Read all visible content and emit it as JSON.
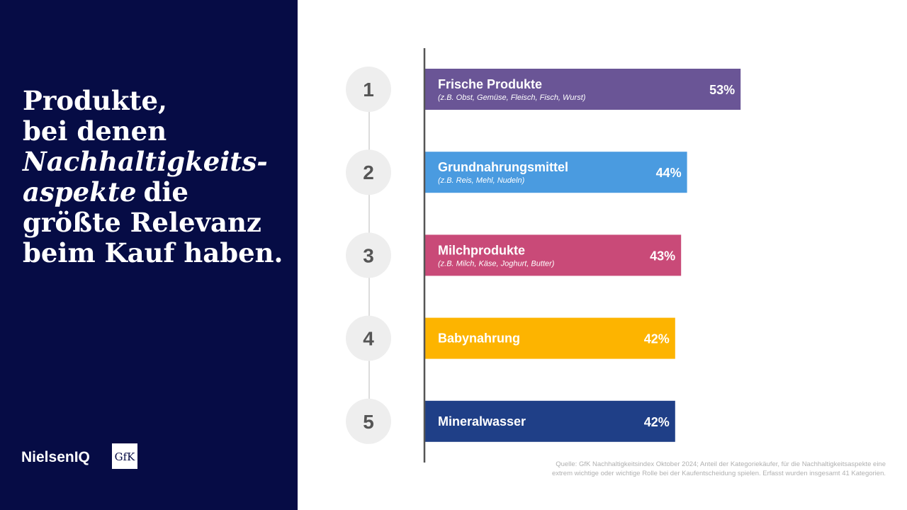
{
  "title": [
    [
      "Produkte,"
    ],
    [
      "bei denen"
    ],
    [
      {
        "text": "Nachhaltigkeits-",
        "italic": true
      }
    ],
    [
      {
        "text": "aspekte",
        "italic": true
      },
      "die"
    ],
    [
      "größte Relevanz"
    ],
    [
      "beim Kauf haben."
    ]
  ],
  "logos": [
    "NielsenIQ",
    "GfK"
  ],
  "source": [
    "Quelle: GfK Nachhaltigkeitsindex Oktober 2024; Anteil der Kategoriekäufer, für die Nachhaltigkeitsaspekte eine",
    "extrem wichtige oder wichtige Rolle bei der Kaufentscheidung spielen. Erfasst wurden insgesamt 41 Kategorien."
  ],
  "chart_data": {
    "type": "bar",
    "orientation": "horizontal",
    "ranks": [
      1,
      2,
      3,
      4,
      5
    ],
    "categories": [
      "Frische Produkte",
      "Grundnahrungsmittel",
      "Milchprodukte",
      "Babynahrung",
      "Mineralwasser"
    ],
    "sublabels": [
      "(z.B. Obst, Gemüse, Fleisch, Fisch, Wurst)",
      "(z.B. Reis, Mehl, Nudeln)",
      "(z.B. Milch, Käse, Joghurt, Butter)",
      null,
      null
    ],
    "values": [
      53,
      44,
      43,
      42,
      42
    ],
    "value_labels": [
      "53%",
      "44%",
      "43%",
      "42%",
      "42%"
    ],
    "colors": [
      "#6a5596",
      "#4a9be0",
      "#c94a78",
      "#fdb400",
      "#1f3f87"
    ]
  }
}
